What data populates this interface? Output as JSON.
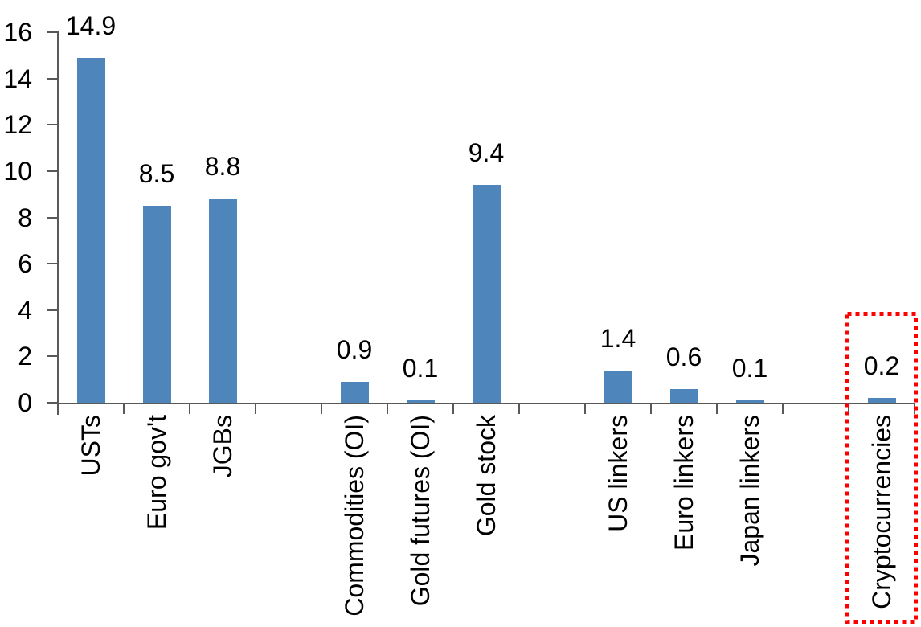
{
  "chart_data": {
    "type": "bar",
    "title": "",
    "xlabel": "",
    "ylabel": "",
    "categories": [
      "USTs",
      "Euro gov't",
      "JGBs",
      "",
      "Commodities (OI)",
      "Gold futures (OI)",
      "Gold stock",
      "",
      "US linkers",
      "Euro linkers",
      "Japan linkers",
      "",
      "Cryptocurrencies"
    ],
    "values": [
      14.9,
      8.5,
      8.8,
      null,
      0.9,
      0.1,
      9.4,
      null,
      1.4,
      0.6,
      0.1,
      null,
      0.2
    ],
    "value_labels": [
      "14.9",
      "8.5",
      "8.8",
      "",
      "0.9",
      "0.1",
      "9.4",
      "",
      "1.4",
      "0.6",
      "0.1",
      "",
      "0.2"
    ],
    "ylim": [
      0,
      16
    ],
    "yticks": [
      "0",
      "2",
      "4",
      "6",
      "8",
      "10",
      "12",
      "14",
      "16"
    ],
    "grid": false,
    "legend": false,
    "colors": {
      "bar": "#4E86BC",
      "axis": "#595959",
      "text": "#000000",
      "highlight_box": "#FF0000"
    },
    "annotation": {
      "type": "dotted-box",
      "category": "Cryptocurrencies",
      "color": "#FF0000"
    }
  }
}
